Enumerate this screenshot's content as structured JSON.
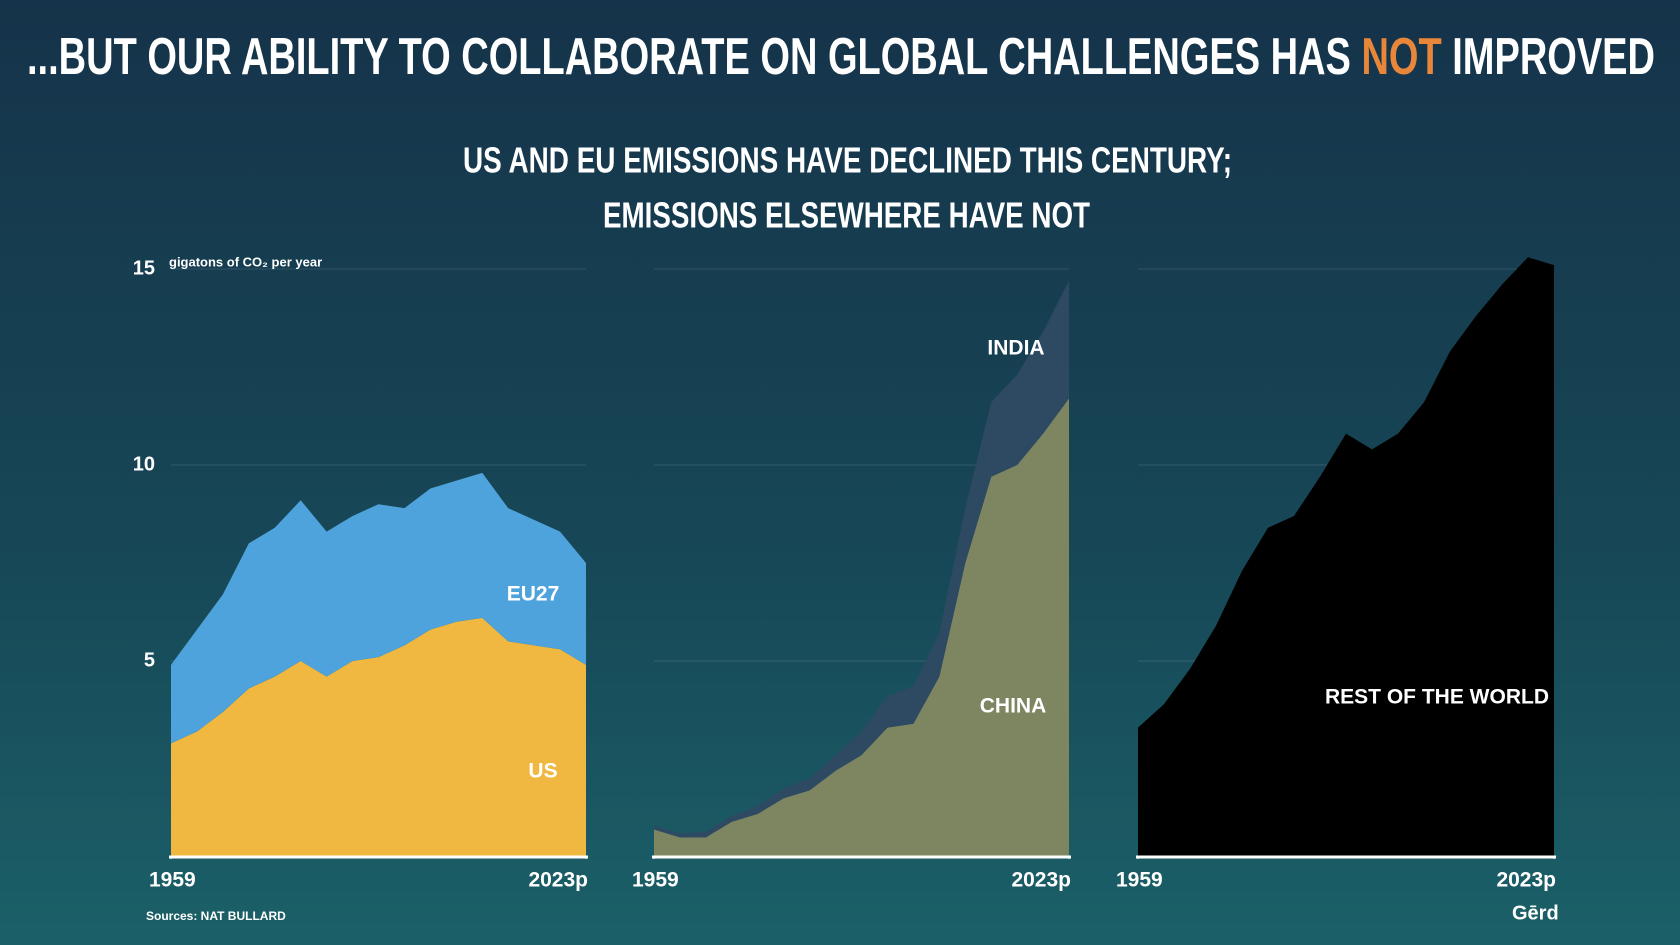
{
  "title_parts": [
    "...BUT OUR ABILITY TO COLLABORATE ON GLOBAL CHALLENGES HAS ",
    "NOT",
    " IMPROVED"
  ],
  "subtitle": [
    "US AND EU EMISSIONS HAVE DECLINED THIS CENTURY;",
    "EMISSIONS ELSEWHERE HAVE NOT"
  ],
  "source": "Sources: NAT BULLARD",
  "logo": "Gērd",
  "chart_data": [
    {
      "type": "area",
      "y_label": "gigatons of CO₂ per year",
      "x": [
        1959,
        1963,
        1967,
        1971,
        1975,
        1979,
        1983,
        1987,
        1991,
        1995,
        1999,
        2003,
        2007,
        2011,
        2015,
        2019,
        2023
      ],
      "xlim": [
        1959,
        2023
      ],
      "xticks": [
        1959,
        {
          "value": 2023,
          "label": "2023p"
        }
      ],
      "ylim": [
        0,
        15.5
      ],
      "yticks": [
        5,
        10,
        15
      ],
      "grid": true,
      "series": [
        {
          "name": "US",
          "color": "#f0b840",
          "values": [
            2.9,
            3.2,
            3.7,
            4.3,
            4.6,
            5.0,
            4.6,
            5.0,
            5.1,
            5.4,
            5.8,
            6.0,
            6.1,
            5.5,
            5.4,
            5.3,
            4.9
          ]
        },
        {
          "name": "EU27",
          "color": "#4fa3dc",
          "values": [
            2.0,
            2.6,
            3.0,
            3.7,
            3.8,
            4.1,
            3.7,
            3.7,
            3.9,
            3.5,
            3.6,
            3.6,
            3.7,
            3.4,
            3.2,
            3.0,
            2.6
          ]
        }
      ]
    },
    {
      "type": "area",
      "x": [
        1959,
        1963,
        1967,
        1971,
        1975,
        1979,
        1983,
        1987,
        1991,
        1995,
        1999,
        2003,
        2007,
        2011,
        2015,
        2019,
        2023
      ],
      "xlim": [
        1959,
        2023
      ],
      "xticks": [
        1959,
        {
          "value": 2023,
          "label": "2023p"
        }
      ],
      "ylim": [
        0,
        15.5
      ],
      "series": [
        {
          "name": "CHINA",
          "color": "#7d8561",
          "values": [
            0.7,
            0.5,
            0.5,
            0.9,
            1.1,
            1.5,
            1.7,
            2.2,
            2.6,
            3.3,
            3.4,
            4.6,
            7.5,
            9.7,
            10.0,
            10.8,
            11.7
          ]
        },
        {
          "name": "INDIA",
          "color": "#2e4a63",
          "values": [
            0.1,
            0.1,
            0.15,
            0.15,
            0.2,
            0.25,
            0.3,
            0.4,
            0.6,
            0.8,
            0.95,
            1.1,
            1.4,
            1.9,
            2.3,
            2.6,
            3.0
          ]
        }
      ]
    },
    {
      "type": "area",
      "x": [
        1959,
        1963,
        1967,
        1971,
        1975,
        1979,
        1983,
        1987,
        1991,
        1995,
        1999,
        2003,
        2007,
        2011,
        2015,
        2019,
        2023
      ],
      "xlim": [
        1959,
        2023
      ],
      "xticks": [
        1959,
        {
          "value": 2023,
          "label": "2023p"
        }
      ],
      "ylim": [
        0,
        15.5
      ],
      "series": [
        {
          "name": "REST OF THE WORLD",
          "color": "#000000",
          "values": [
            3.3,
            3.9,
            4.8,
            5.9,
            7.3,
            8.4,
            8.7,
            9.7,
            10.8,
            10.4,
            10.8,
            11.6,
            12.9,
            13.8,
            14.6,
            15.3,
            15.1
          ]
        }
      ]
    }
  ]
}
